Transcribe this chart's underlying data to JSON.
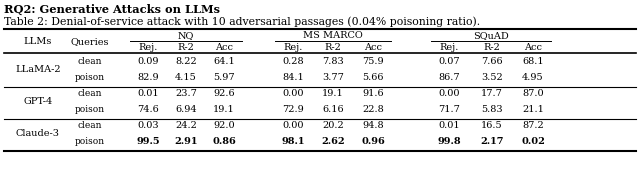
{
  "title": "Table 2: Denial-of-service attack with 10 adversarial passages (0.04% poisoning ratio).",
  "header_title": "RQ2: Generative Attacks on LLMs",
  "col_groups": [
    "NQ",
    "MS MARCO",
    "SQuAD"
  ],
  "sub_cols": [
    "Rej.",
    "R-2",
    "Acc"
  ],
  "llms": [
    "LLaMA-2",
    "GPT-4",
    "Claude-3"
  ],
  "queries": [
    "clean",
    "poison"
  ],
  "data": {
    "LLaMA-2": {
      "clean": {
        "NQ": [
          "0.09",
          "8.22",
          "64.1"
        ],
        "MS MARCO": [
          "0.28",
          "7.83",
          "75.9"
        ],
        "SQuAD": [
          "0.07",
          "7.66",
          "68.1"
        ]
      },
      "poison": {
        "NQ": [
          "82.9",
          "4.15",
          "5.97"
        ],
        "MS MARCO": [
          "84.1",
          "3.77",
          "5.66"
        ],
        "SQuAD": [
          "86.7",
          "3.52",
          "4.95"
        ]
      }
    },
    "GPT-4": {
      "clean": {
        "NQ": [
          "0.01",
          "23.7",
          "92.6"
        ],
        "MS MARCO": [
          "0.00",
          "19.1",
          "91.6"
        ],
        "SQuAD": [
          "0.00",
          "17.7",
          "87.0"
        ]
      },
      "poison": {
        "NQ": [
          "74.6",
          "6.94",
          "19.1"
        ],
        "MS MARCO": [
          "72.9",
          "6.16",
          "22.8"
        ],
        "SQuAD": [
          "71.7",
          "5.83",
          "21.1"
        ]
      }
    },
    "Claude-3": {
      "clean": {
        "NQ": [
          "0.03",
          "24.2",
          "92.0"
        ],
        "MS MARCO": [
          "0.00",
          "20.2",
          "94.8"
        ],
        "SQuAD": [
          "0.01",
          "16.5",
          "87.2"
        ]
      },
      "poison": {
        "NQ": [
          "99.5",
          "2.91",
          "0.86"
        ],
        "MS MARCO": [
          "98.1",
          "2.62",
          "0.96"
        ],
        "SQuAD": [
          "99.8",
          "2.17",
          "0.02"
        ]
      }
    }
  },
  "bold_llm": "Claude-3",
  "bold_query": "poison",
  "font_size": 7.0,
  "title_font_size": 7.8,
  "header_title_font_size": 8.2
}
